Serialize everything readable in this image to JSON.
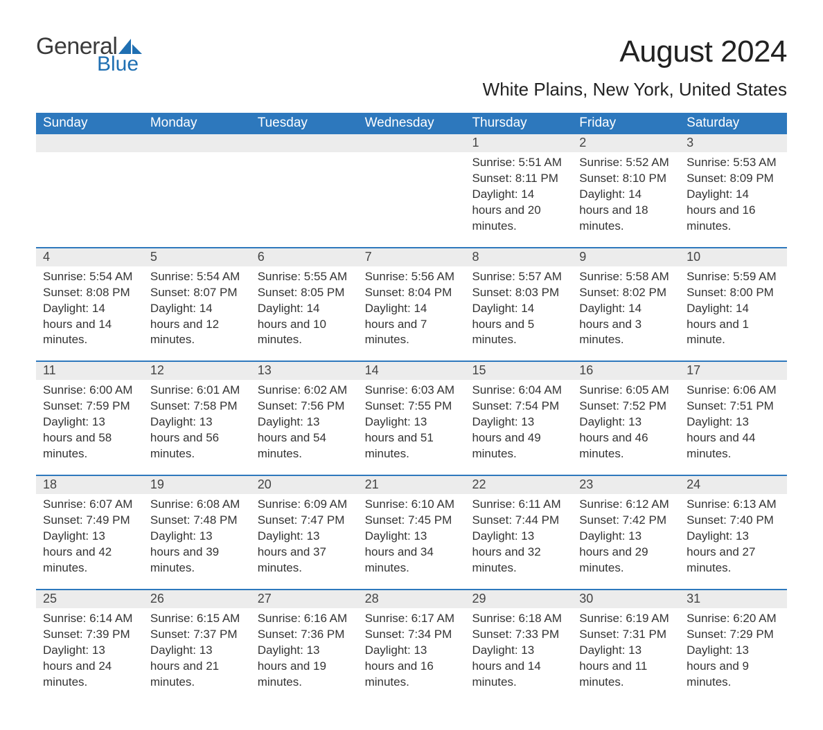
{
  "logo": {
    "text_general": "General",
    "text_blue": "Blue",
    "sail_color": "#1f6fb2",
    "general_color": "#3a3a3a"
  },
  "title": "August 2024",
  "subtitle": "White Plains, New York, United States",
  "header_bg": "#2d78bd",
  "header_fg": "#ffffff",
  "daynum_bg": "#ececec",
  "week_border_color": "#2d78bd",
  "text_color": "#333333",
  "days_of_week": [
    "Sunday",
    "Monday",
    "Tuesday",
    "Wednesday",
    "Thursday",
    "Friday",
    "Saturday"
  ],
  "weeks": [
    [
      null,
      null,
      null,
      null,
      {
        "n": "1",
        "sunrise": "Sunrise: 5:51 AM",
        "sunset": "Sunset: 8:11 PM",
        "daylight": "Daylight: 14 hours and 20 minutes."
      },
      {
        "n": "2",
        "sunrise": "Sunrise: 5:52 AM",
        "sunset": "Sunset: 8:10 PM",
        "daylight": "Daylight: 14 hours and 18 minutes."
      },
      {
        "n": "3",
        "sunrise": "Sunrise: 5:53 AM",
        "sunset": "Sunset: 8:09 PM",
        "daylight": "Daylight: 14 hours and 16 minutes."
      }
    ],
    [
      {
        "n": "4",
        "sunrise": "Sunrise: 5:54 AM",
        "sunset": "Sunset: 8:08 PM",
        "daylight": "Daylight: 14 hours and 14 minutes."
      },
      {
        "n": "5",
        "sunrise": "Sunrise: 5:54 AM",
        "sunset": "Sunset: 8:07 PM",
        "daylight": "Daylight: 14 hours and 12 minutes."
      },
      {
        "n": "6",
        "sunrise": "Sunrise: 5:55 AM",
        "sunset": "Sunset: 8:05 PM",
        "daylight": "Daylight: 14 hours and 10 minutes."
      },
      {
        "n": "7",
        "sunrise": "Sunrise: 5:56 AM",
        "sunset": "Sunset: 8:04 PM",
        "daylight": "Daylight: 14 hours and 7 minutes."
      },
      {
        "n": "8",
        "sunrise": "Sunrise: 5:57 AM",
        "sunset": "Sunset: 8:03 PM",
        "daylight": "Daylight: 14 hours and 5 minutes."
      },
      {
        "n": "9",
        "sunrise": "Sunrise: 5:58 AM",
        "sunset": "Sunset: 8:02 PM",
        "daylight": "Daylight: 14 hours and 3 minutes."
      },
      {
        "n": "10",
        "sunrise": "Sunrise: 5:59 AM",
        "sunset": "Sunset: 8:00 PM",
        "daylight": "Daylight: 14 hours and 1 minute."
      }
    ],
    [
      {
        "n": "11",
        "sunrise": "Sunrise: 6:00 AM",
        "sunset": "Sunset: 7:59 PM",
        "daylight": "Daylight: 13 hours and 58 minutes."
      },
      {
        "n": "12",
        "sunrise": "Sunrise: 6:01 AM",
        "sunset": "Sunset: 7:58 PM",
        "daylight": "Daylight: 13 hours and 56 minutes."
      },
      {
        "n": "13",
        "sunrise": "Sunrise: 6:02 AM",
        "sunset": "Sunset: 7:56 PM",
        "daylight": "Daylight: 13 hours and 54 minutes."
      },
      {
        "n": "14",
        "sunrise": "Sunrise: 6:03 AM",
        "sunset": "Sunset: 7:55 PM",
        "daylight": "Daylight: 13 hours and 51 minutes."
      },
      {
        "n": "15",
        "sunrise": "Sunrise: 6:04 AM",
        "sunset": "Sunset: 7:54 PM",
        "daylight": "Daylight: 13 hours and 49 minutes."
      },
      {
        "n": "16",
        "sunrise": "Sunrise: 6:05 AM",
        "sunset": "Sunset: 7:52 PM",
        "daylight": "Daylight: 13 hours and 46 minutes."
      },
      {
        "n": "17",
        "sunrise": "Sunrise: 6:06 AM",
        "sunset": "Sunset: 7:51 PM",
        "daylight": "Daylight: 13 hours and 44 minutes."
      }
    ],
    [
      {
        "n": "18",
        "sunrise": "Sunrise: 6:07 AM",
        "sunset": "Sunset: 7:49 PM",
        "daylight": "Daylight: 13 hours and 42 minutes."
      },
      {
        "n": "19",
        "sunrise": "Sunrise: 6:08 AM",
        "sunset": "Sunset: 7:48 PM",
        "daylight": "Daylight: 13 hours and 39 minutes."
      },
      {
        "n": "20",
        "sunrise": "Sunrise: 6:09 AM",
        "sunset": "Sunset: 7:47 PM",
        "daylight": "Daylight: 13 hours and 37 minutes."
      },
      {
        "n": "21",
        "sunrise": "Sunrise: 6:10 AM",
        "sunset": "Sunset: 7:45 PM",
        "daylight": "Daylight: 13 hours and 34 minutes."
      },
      {
        "n": "22",
        "sunrise": "Sunrise: 6:11 AM",
        "sunset": "Sunset: 7:44 PM",
        "daylight": "Daylight: 13 hours and 32 minutes."
      },
      {
        "n": "23",
        "sunrise": "Sunrise: 6:12 AM",
        "sunset": "Sunset: 7:42 PM",
        "daylight": "Daylight: 13 hours and 29 minutes."
      },
      {
        "n": "24",
        "sunrise": "Sunrise: 6:13 AM",
        "sunset": "Sunset: 7:40 PM",
        "daylight": "Daylight: 13 hours and 27 minutes."
      }
    ],
    [
      {
        "n": "25",
        "sunrise": "Sunrise: 6:14 AM",
        "sunset": "Sunset: 7:39 PM",
        "daylight": "Daylight: 13 hours and 24 minutes."
      },
      {
        "n": "26",
        "sunrise": "Sunrise: 6:15 AM",
        "sunset": "Sunset: 7:37 PM",
        "daylight": "Daylight: 13 hours and 21 minutes."
      },
      {
        "n": "27",
        "sunrise": "Sunrise: 6:16 AM",
        "sunset": "Sunset: 7:36 PM",
        "daylight": "Daylight: 13 hours and 19 minutes."
      },
      {
        "n": "28",
        "sunrise": "Sunrise: 6:17 AM",
        "sunset": "Sunset: 7:34 PM",
        "daylight": "Daylight: 13 hours and 16 minutes."
      },
      {
        "n": "29",
        "sunrise": "Sunrise: 6:18 AM",
        "sunset": "Sunset: 7:33 PM",
        "daylight": "Daylight: 13 hours and 14 minutes."
      },
      {
        "n": "30",
        "sunrise": "Sunrise: 6:19 AM",
        "sunset": "Sunset: 7:31 PM",
        "daylight": "Daylight: 13 hours and 11 minutes."
      },
      {
        "n": "31",
        "sunrise": "Sunrise: 6:20 AM",
        "sunset": "Sunset: 7:29 PM",
        "daylight": "Daylight: 13 hours and 9 minutes."
      }
    ]
  ]
}
